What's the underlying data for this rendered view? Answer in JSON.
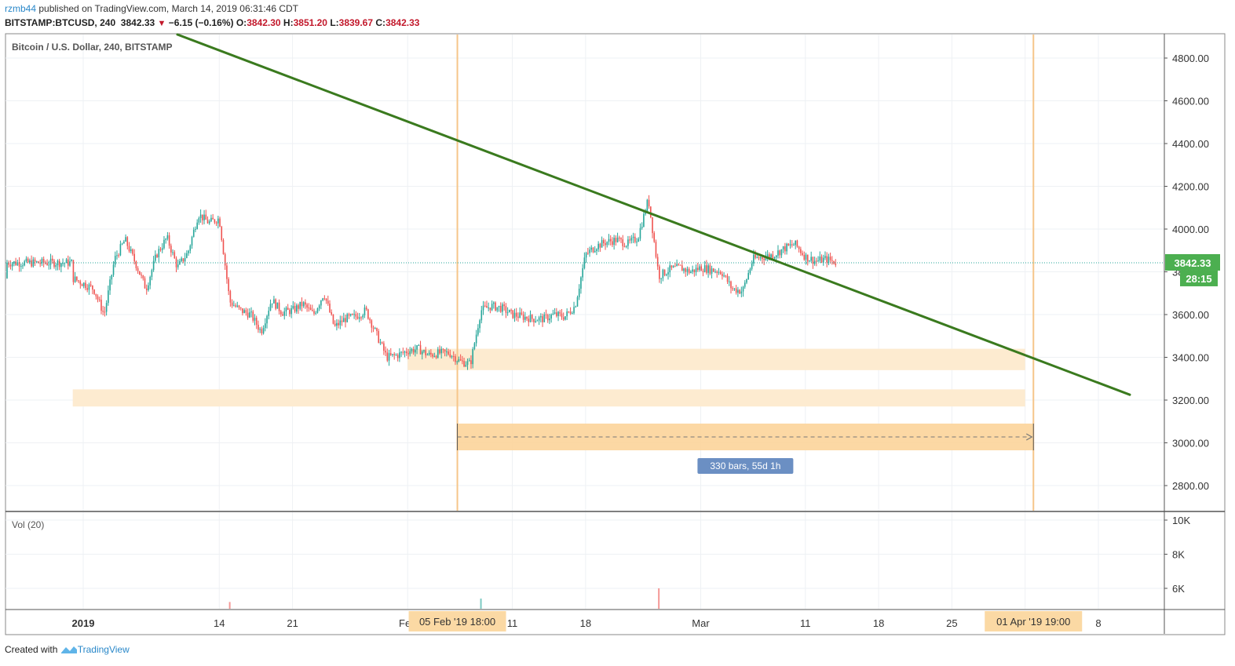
{
  "header": {
    "user": "rzmb44",
    "published_text": "published on TradingView.com, March 14, 2019 06:31:46 CDT",
    "symbol": "BITSTAMP:BTCUSD, 240",
    "last": "3842.33",
    "change": "−6.15 (−0.16%)",
    "o_label": "O:",
    "o_value": "3842.30",
    "h_label": "H:",
    "h_value": "3851.20",
    "l_label": "L:",
    "l_value": "3839.67",
    "c_label": "C:",
    "c_value": "3842.33"
  },
  "footer": {
    "created_with": "Created with",
    "brand": "TradingView"
  },
  "colors": {
    "up": "#26a69a",
    "down": "#ef5350",
    "trendline": "#3a7a1e",
    "zone": "#fdebd0",
    "range": "#fcd49a",
    "vline": "#f6c68a",
    "badge_green": "#4caf50",
    "date_label_bg": "#fbd9a4",
    "measure_label_bg": "#6b8fc3"
  },
  "chart_data": {
    "type": "candlestick",
    "title": "Bitcoin / U.S. Dollar, 240, BITSTAMP",
    "y_axis": {
      "min": 2700,
      "max": 4900,
      "ticks": [
        "4800.00",
        "4600.00",
        "4400.00",
        "4200.00",
        "4000.00",
        "3800.00",
        "3600.00",
        "3400.00",
        "3200.00",
        "3000.00",
        "2800.00"
      ]
    },
    "x_ticks": [
      "2019",
      "14",
      "21",
      "Feb",
      "11",
      "18",
      "Mar",
      "11",
      "18",
      "25",
      "Apr",
      "8"
    ],
    "last_price_label": "3842.33",
    "countdown_label": "28:15",
    "price_path": [
      [
        "Dec 31",
        3770
      ],
      [
        "Jan 2",
        3720
      ],
      [
        "Jan 3",
        3600
      ],
      [
        "Jan 4",
        3860
      ],
      [
        "Jan 5",
        3950
      ],
      [
        "Jan 6",
        3840
      ],
      [
        "Jan 7",
        3720
      ],
      [
        "Jan 8",
        3880
      ],
      [
        "Jan 9",
        3960
      ],
      [
        "Jan 10",
        3820
      ],
      [
        "Jan 11",
        3890
      ],
      [
        "Jan 12",
        4070
      ],
      [
        "Jan 13",
        4030
      ],
      [
        "Jan 14",
        4050
      ],
      [
        "Jan 15",
        3660
      ],
      [
        "Jan 16",
        3620
      ],
      [
        "Jan 17",
        3600
      ],
      [
        "Jan 18",
        3520
      ],
      [
        "Jan 19",
        3670
      ],
      [
        "Jan 20",
        3610
      ],
      [
        "Jan 21",
        3620
      ],
      [
        "Jan 22",
        3650
      ],
      [
        "Jan 23",
        3600
      ],
      [
        "Jan 24",
        3700
      ],
      [
        "Jan 25",
        3540
      ],
      [
        "Jan 26",
        3580
      ],
      [
        "Jan 27",
        3590
      ],
      [
        "Jan 28",
        3620
      ],
      [
        "Jan 29",
        3510
      ],
      [
        "Jan 30",
        3400
      ],
      [
        "Jan 31",
        3410
      ],
      [
        "Feb 1",
        3430
      ],
      [
        "Feb 2",
        3440
      ],
      [
        "Feb 3",
        3410
      ],
      [
        "Feb 4",
        3420
      ],
      [
        "Feb 5",
        3420
      ],
      [
        "Feb 6",
        3380
      ],
      [
        "Feb 7",
        3370
      ],
      [
        "Feb 8",
        3620
      ],
      [
        "Feb 9",
        3640
      ],
      [
        "Feb 10",
        3630
      ],
      [
        "Feb 11",
        3600
      ],
      [
        "Feb 12",
        3590
      ],
      [
        "Feb 13",
        3580
      ],
      [
        "Feb 14",
        3580
      ],
      [
        "Feb 15",
        3600
      ],
      [
        "Feb 16",
        3590
      ],
      [
        "Feb 17",
        3640
      ],
      [
        "Feb 18",
        3880
      ],
      [
        "Feb 19",
        3920
      ],
      [
        "Feb 20",
        3940
      ],
      [
        "Feb 21",
        3950
      ],
      [
        "Feb 22",
        3930
      ],
      [
        "Feb 23",
        3960
      ],
      [
        "Feb 24",
        4140
      ],
      [
        "Feb 25",
        3780
      ],
      [
        "Feb 26",
        3810
      ],
      [
        "Feb 27",
        3820
      ],
      [
        "Feb 28",
        3800
      ],
      [
        "Mar 1",
        3820
      ],
      [
        "Mar 2",
        3810
      ],
      [
        "Mar 3",
        3800
      ],
      [
        "Mar 4",
        3720
      ],
      [
        "Mar 5",
        3710
      ],
      [
        "Mar 6",
        3860
      ],
      [
        "Mar 7",
        3870
      ],
      [
        "Mar 8",
        3880
      ],
      [
        "Mar 9",
        3910
      ],
      [
        "Mar 10",
        3930
      ],
      [
        "Mar 11",
        3870
      ],
      [
        "Mar 12",
        3850
      ],
      [
        "Mar 13",
        3860
      ],
      [
        "Mar 14",
        3842.33
      ]
    ],
    "trendline": {
      "start": [
        "Jan 10",
        4910
      ],
      "end": [
        "Apr 11",
        3225
      ]
    },
    "zones": [
      {
        "from": "Feb 1",
        "to": "Apr 1",
        "low": 3340,
        "high": 3440
      },
      {
        "from": "Dec 31",
        "to": "Apr 1",
        "low": 3170,
        "high": 3250
      }
    ],
    "date_range": {
      "start": "Feb 5 18:00",
      "end": "Apr 1 19:00",
      "low": 2965,
      "high": 3090,
      "start_label": "05 Feb '19   18:00",
      "end_label": "01 Apr '19   19:00",
      "measure_label": "330 bars, 55d 1h"
    },
    "volume": {
      "title": "Vol (20)",
      "y_ticks": [
        "10K",
        "8K",
        "6K"
      ],
      "spikes": [
        [
          "Jan 15",
          5200,
          "down"
        ],
        [
          "Feb 8",
          5400,
          "up"
        ],
        [
          "Feb 25",
          6000,
          "down"
        ]
      ]
    }
  }
}
